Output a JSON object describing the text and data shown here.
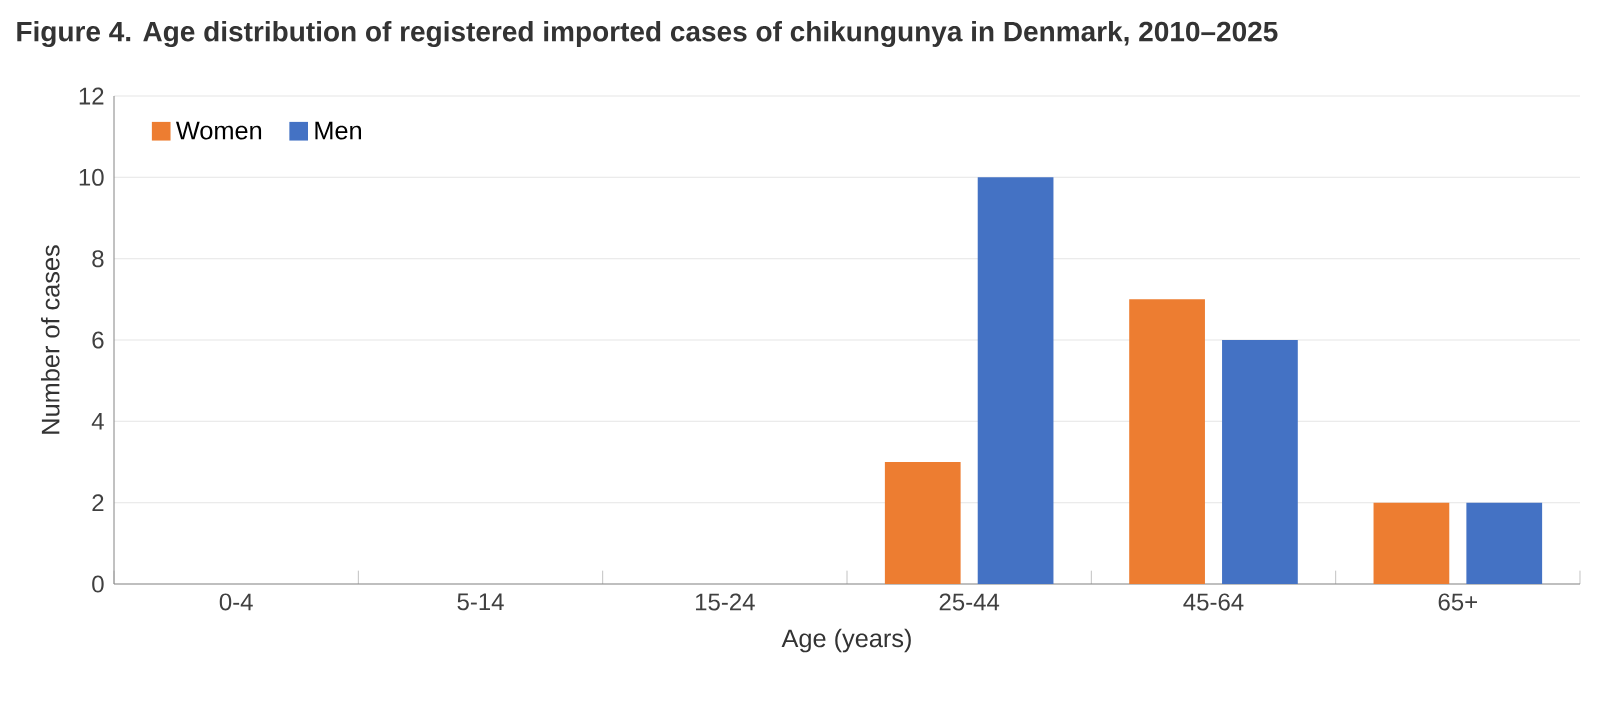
{
  "chart_data": {
    "type": "bar",
    "title": "Figure 4. Age distribution of registered imported cases of chikungunya in Denmark, 2010–2025",
    "xlabel": "Age (years)",
    "ylabel": "Number of cases",
    "categories": [
      "0-4",
      "5-14",
      "15-24",
      "25-44",
      "45-64",
      "65+"
    ],
    "series": [
      {
        "name": "Women",
        "color": "#ed7d31",
        "values": [
          0,
          0,
          0,
          3,
          7,
          2
        ]
      },
      {
        "name": "Men",
        "color": "#4472c4",
        "values": [
          0,
          0,
          0,
          10,
          6,
          2
        ]
      }
    ],
    "ylim": [
      0,
      12
    ],
    "yticks": [
      0,
      2,
      4,
      6,
      8,
      10,
      12
    ],
    "grid": "y",
    "legend": "top left"
  }
}
